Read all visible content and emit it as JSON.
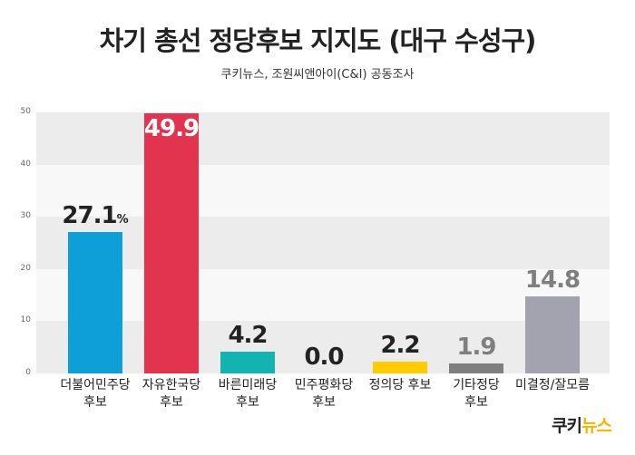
{
  "title": "차기 총선 정당후보 지지도 (대구 수성구)",
  "subtitle": "쿠키뉴스, 조원씨앤아이(C&I) 공동조사",
  "logo": {
    "part1": "쿠키",
    "part2": "뉴스"
  },
  "chart_data": {
    "type": "bar",
    "title": "차기 총선 정당후보 지지도 (대구 수성구)",
    "subtitle": "쿠키뉴스, 조원씨앤아이(C&I) 공동조사",
    "ylim": [
      0,
      50
    ],
    "yticks": [
      "0",
      "10",
      "20",
      "30",
      "40",
      "50"
    ],
    "grid": "alternating horizontal bands",
    "unit_label": "%",
    "categories": [
      [
        "더불어민주당",
        "후보"
      ],
      [
        "자유한국당",
        "후보"
      ],
      [
        "바른미래당",
        "후보"
      ],
      [
        "민주평화당",
        "후보"
      ],
      [
        "정의당 후보"
      ],
      [
        "기타정당",
        "후보"
      ],
      [
        "미결정/잘모름"
      ]
    ],
    "values": [
      27.1,
      49.9,
      4.2,
      0.0,
      2.2,
      1.9,
      14.8
    ],
    "value_labels": [
      "27.1",
      "49.9",
      "4.2",
      "0.0",
      "2.2",
      "1.9",
      "14.8"
    ],
    "colors": [
      "#0e9fd8",
      "#e2334f",
      "#13b3b2",
      "#0e9fd8",
      "#ffcc00",
      "#7f7f7f",
      "#a3a3b0"
    ],
    "label_colors": [
      "#222222",
      "#ffffff",
      "#222222",
      "#222222",
      "#222222",
      "#7f7f7f",
      "#7f7f7f"
    ]
  }
}
